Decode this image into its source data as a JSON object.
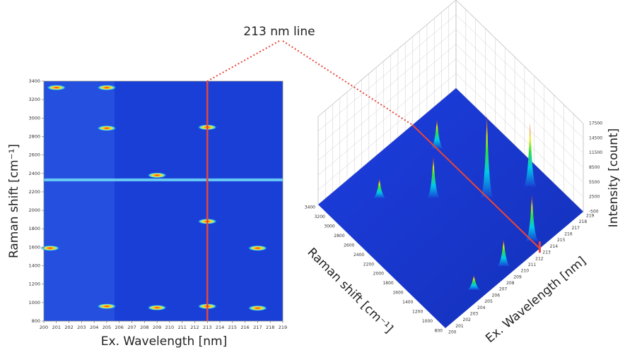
{
  "annotation": "213 nm line",
  "chart_data": [
    {
      "type": "heatmap",
      "xlabel": "Ex. Wavelength [nm]",
      "ylabel": "Raman shift [cm⁻¹]",
      "xlim": [
        200,
        219
      ],
      "xticks": [
        200,
        201,
        202,
        203,
        204,
        205,
        206,
        207,
        208,
        209,
        210,
        211,
        212,
        213,
        214,
        215,
        216,
        217,
        218,
        219
      ],
      "ylim": [
        800,
        3400
      ],
      "yticks": [
        800,
        1000,
        1200,
        1400,
        1600,
        1800,
        2000,
        2200,
        2400,
        2600,
        2800,
        3000,
        3200,
        3400
      ],
      "marker_line": 213,
      "marker_color": "#e8463a",
      "background": "#1a3fd6",
      "band_y": 2330,
      "spots": {
        "x": [
          213,
          213,
          213,
          209,
          209,
          205,
          205,
          217,
          217,
          201,
          205,
          200.5
        ],
        "y": [
          960,
          1880,
          2900,
          945,
          2380,
          960,
          2890,
          1590,
          940,
          3330,
          3330,
          1590
        ]
      }
    },
    {
      "type": "surface3d",
      "xlabel": "Ex. Wavelength [nm]",
      "ylabel": "Raman shift [cm⁻¹]",
      "zlabel": "Intensity [count]",
      "xlim": [
        200,
        219
      ],
      "xticks": [
        200,
        201,
        202,
        203,
        204,
        205,
        206,
        207,
        208,
        209,
        210,
        211,
        212,
        213,
        214,
        215,
        216,
        217,
        218,
        219
      ],
      "ylim": [
        800,
        3400
      ],
      "yticks": [
        800,
        1000,
        1200,
        1400,
        1600,
        1800,
        2000,
        2200,
        2400,
        2600,
        2800,
        3000,
        3200,
        3400
      ],
      "zlim": [
        -500,
        17500
      ],
      "zticks": [
        -500,
        2500,
        5500,
        8500,
        11500,
        14500,
        17500
      ],
      "marker_line": 213,
      "peaks": {
        "x": [
          213,
          217,
          213,
          209,
          205,
          213,
          209,
          205
        ],
        "y": [
          2900,
          1590,
          1880,
          2380,
          2890,
          960,
          945,
          960
        ],
        "z": [
          5500,
          12500,
          16500,
          8000,
          3500,
          9000,
          5000,
          2500
        ]
      }
    }
  ]
}
